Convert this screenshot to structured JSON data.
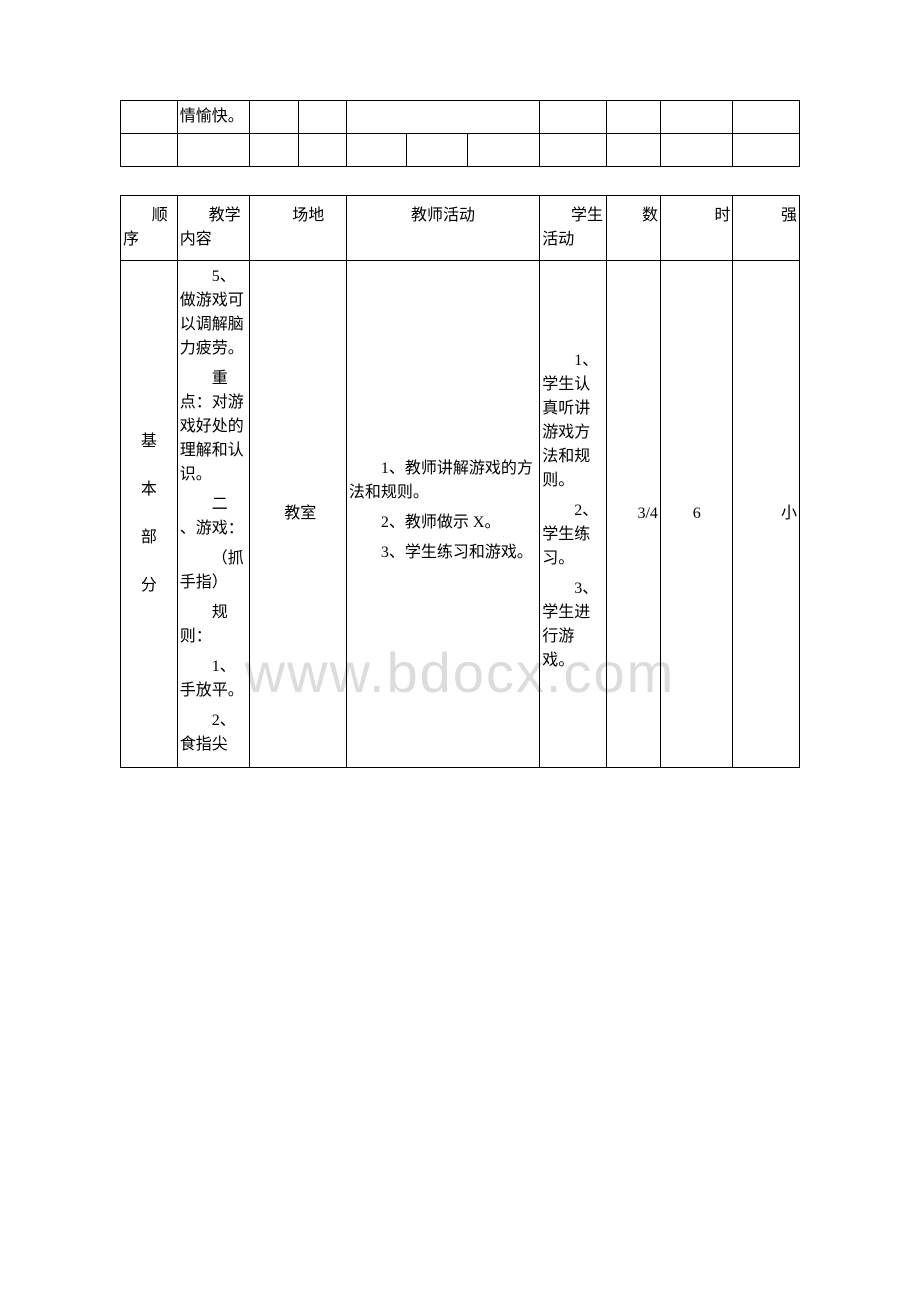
{
  "watermark": "www.bdocx.com",
  "table1": {
    "row1_col2": "情愉快。"
  },
  "table2": {
    "header": {
      "seq": "顺序",
      "content": "教学内容",
      "venue": "场地",
      "teacher": "教师活动",
      "student": "学生活动",
      "count": "数",
      "time": "时",
      "intensity": "强"
    },
    "row": {
      "seq_lines": [
        "基",
        "本",
        "部",
        "分"
      ],
      "content_p1": "5、做游戏可以调解脑力疲劳。",
      "content_p2a": "重",
      "content_p2b": "点：对游戏好处的理解和认识。",
      "content_p3a": "二",
      "content_p3b": "、游戏：",
      "content_p4": "（抓手指）",
      "content_p5a": "规",
      "content_p5b": "则：",
      "content_p6": "1、手放平。",
      "content_p7": "2、食指尖",
      "venue": "教室",
      "teacher_p1": "1、教师讲解游戏的方法和规则。",
      "teacher_p2": "2、教师做示 X。",
      "teacher_p3": "3、学生练习和游戏。",
      "student_p1": "1、学生认真听讲游戏方法和规则。",
      "student_p2": "2、学生练习。",
      "student_p3": "3、学生进行游戏。",
      "count": "3/4",
      "time": "6",
      "intensity": "小"
    }
  }
}
